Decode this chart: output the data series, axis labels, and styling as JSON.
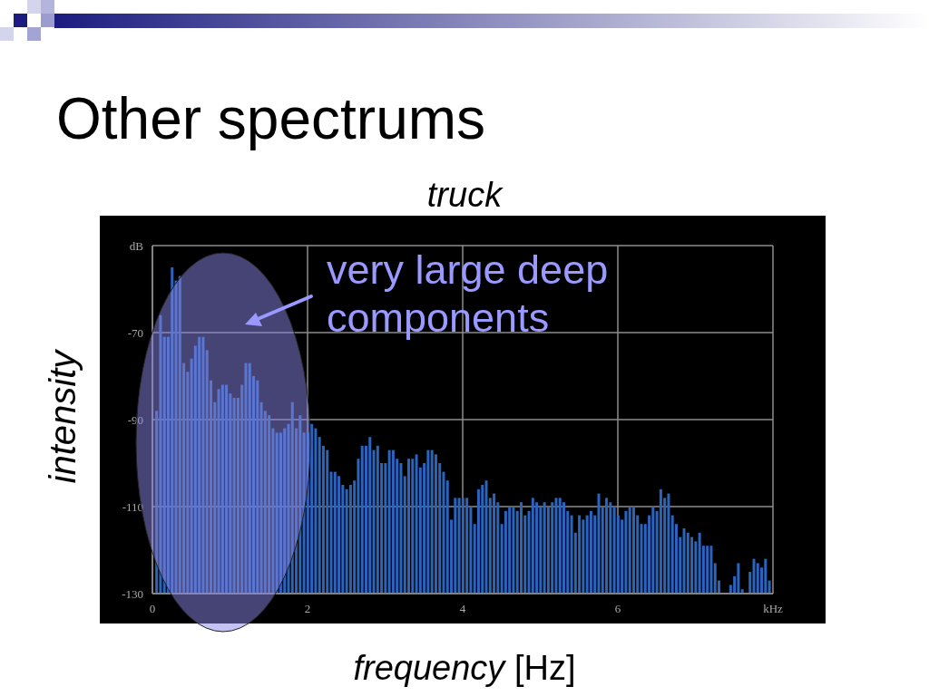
{
  "chart_data": {
    "type": "bar",
    "title": "Other spectrums",
    "subtitle": "truck",
    "xlabel": "frequency [Hz]",
    "ylabel": "intensity",
    "annotations": [
      "very large deep components"
    ],
    "x": [
      0.05,
      0.1,
      0.15,
      0.2,
      0.25,
      0.3,
      0.35,
      0.4,
      0.45,
      0.5,
      0.55,
      0.6,
      0.65,
      0.7,
      0.75,
      0.8,
      0.85,
      0.9,
      0.95,
      1,
      1.05,
      1.1,
      1.15,
      1.2,
      1.25,
      1.3,
      1.35,
      1.4,
      1.45,
      1.5,
      1.55,
      1.6,
      1.65,
      1.7,
      1.75,
      1.8,
      1.85,
      1.9,
      1.95,
      2,
      2.05,
      2.1,
      2.15,
      2.2,
      2.25,
      2.3,
      2.35,
      2.4,
      2.45,
      2.5,
      2.55,
      2.6,
      2.65,
      2.7,
      2.75,
      2.8,
      2.85,
      2.9,
      2.95,
      3,
      3.05,
      3.1,
      3.15,
      3.2,
      3.25,
      3.3,
      3.35,
      3.4,
      3.45,
      3.5,
      3.55,
      3.6,
      3.65,
      3.7,
      3.75,
      3.8,
      3.85,
      3.9,
      3.95,
      4,
      4.05,
      4.1,
      4.15,
      4.2,
      4.25,
      4.3,
      4.35,
      4.4,
      4.45,
      4.5,
      4.55,
      4.6,
      4.65,
      4.7,
      4.75,
      4.8,
      4.85,
      4.9,
      4.95,
      5,
      5.05,
      5.1,
      5.15,
      5.2,
      5.25,
      5.3,
      5.35,
      5.4,
      5.45,
      5.5,
      5.55,
      5.6,
      5.65,
      5.7,
      5.75,
      5.8,
      5.85,
      5.9,
      5.95,
      6,
      6.05,
      6.1,
      6.15,
      6.2,
      6.25,
      6.3,
      6.35,
      6.4,
      6.45,
      6.5,
      6.55,
      6.6,
      6.65,
      6.7,
      6.75,
      6.8,
      6.85,
      6.9,
      6.95,
      7,
      7.05,
      7.1,
      7.15,
      7.2,
      7.25,
      7.3,
      7.35,
      7.4,
      7.45,
      7.5,
      7.55,
      7.6,
      7.65,
      7.7,
      7.75,
      7.8,
      7.85,
      7.9,
      7.95
    ],
    "base": [
      -130,
      -130,
      -130,
      -130,
      -130,
      -130,
      -130,
      -130,
      -130,
      -130,
      -130,
      -130,
      -130,
      -130,
      -130,
      -130,
      -130,
      -130,
      -130,
      -130,
      -130,
      -130,
      -130,
      -130,
      -130,
      -130,
      -130,
      -130,
      -130,
      -130,
      -130,
      -130,
      -130,
      -130,
      -130,
      -130,
      -130,
      -130,
      -130,
      -130,
      -130,
      -130,
      -130,
      -130,
      -130,
      -130,
      -130,
      -130,
      -130,
      -130,
      -130,
      -130,
      -130,
      -130,
      -130,
      -130,
      -130,
      -130,
      -130,
      -130,
      -130,
      -130,
      -130,
      -130,
      -130,
      -130,
      -130,
      -130,
      -130,
      -130,
      -130,
      -130,
      -130,
      -130,
      -130,
      -130,
      -130,
      -130,
      -130,
      -130,
      -130,
      -130,
      -130,
      -130,
      -130,
      -130,
      -130,
      -130,
      -130,
      -130,
      -130,
      -130,
      -130,
      -130,
      -130,
      -130,
      -130,
      -130,
      -130,
      -130,
      -130,
      -130,
      -130,
      -130,
      -130,
      -130,
      -130,
      -130,
      -130,
      -130,
      -130,
      -130,
      -130,
      -130,
      -130,
      -130,
      -130,
      -130,
      -130,
      -130,
      -130,
      -130,
      -130,
      -130,
      -130,
      -130,
      -130,
      -130,
      -130,
      -130,
      -130,
      -130,
      -130,
      -130,
      -130,
      -130,
      -130,
      -130,
      -130,
      -130,
      -130,
      -130,
      -130,
      -130,
      -130,
      -130,
      null,
      null,
      -130,
      -130,
      -130,
      -130,
      null,
      -130,
      -130,
      -130,
      -130,
      -130,
      -130
    ],
    "values": [
      42,
      64,
      59,
      59,
      75,
      72,
      73,
      53,
      51,
      54,
      57,
      59,
      59,
      56,
      49,
      44,
      47,
      48,
      48,
      46,
      45,
      45,
      48,
      53,
      53,
      50,
      49,
      44,
      42,
      41,
      38,
      37,
      37,
      38,
      39,
      44,
      38,
      41,
      37,
      37,
      39,
      38,
      36,
      34,
      33,
      28,
      28,
      27,
      25,
      24,
      25,
      26,
      31,
      34,
      34,
      36,
      33,
      34,
      30,
      30,
      33,
      33,
      31,
      30,
      27,
      31,
      31,
      32,
      29,
      30,
      33,
      33,
      32,
      30,
      28,
      26,
      17,
      22,
      22,
      22,
      22,
      20,
      16,
      24,
      25,
      26,
      22,
      23,
      21,
      16,
      19,
      20,
      20,
      19,
      21,
      18,
      19,
      22,
      21,
      20,
      21,
      20,
      21,
      22,
      22,
      21,
      19,
      18,
      14,
      18,
      17,
      18,
      19,
      18,
      23,
      20,
      22,
      21,
      20,
      18,
      17,
      19,
      20,
      20,
      18,
      16,
      16,
      18,
      20,
      19,
      24,
      22,
      23,
      18,
      16,
      13,
      15,
      14,
      13,
      12,
      14,
      11,
      11,
      11,
      7,
      3,
      null,
      null,
      2,
      4,
      7,
      1,
      null,
      5,
      8,
      7,
      6,
      8,
      3
    ],
    "color": "#2a64bc",
    "xlim": [
      0,
      8
    ],
    "xticks": [
      0,
      2,
      4,
      6,
      {
        "value": 8,
        "label": "kHz"
      }
    ],
    "ylim": [
      -130,
      -50
    ],
    "yticks": [
      -130,
      -110,
      -90,
      -70,
      {
        "value": -50,
        "label": "dB"
      }
    ],
    "grid": true
  }
}
